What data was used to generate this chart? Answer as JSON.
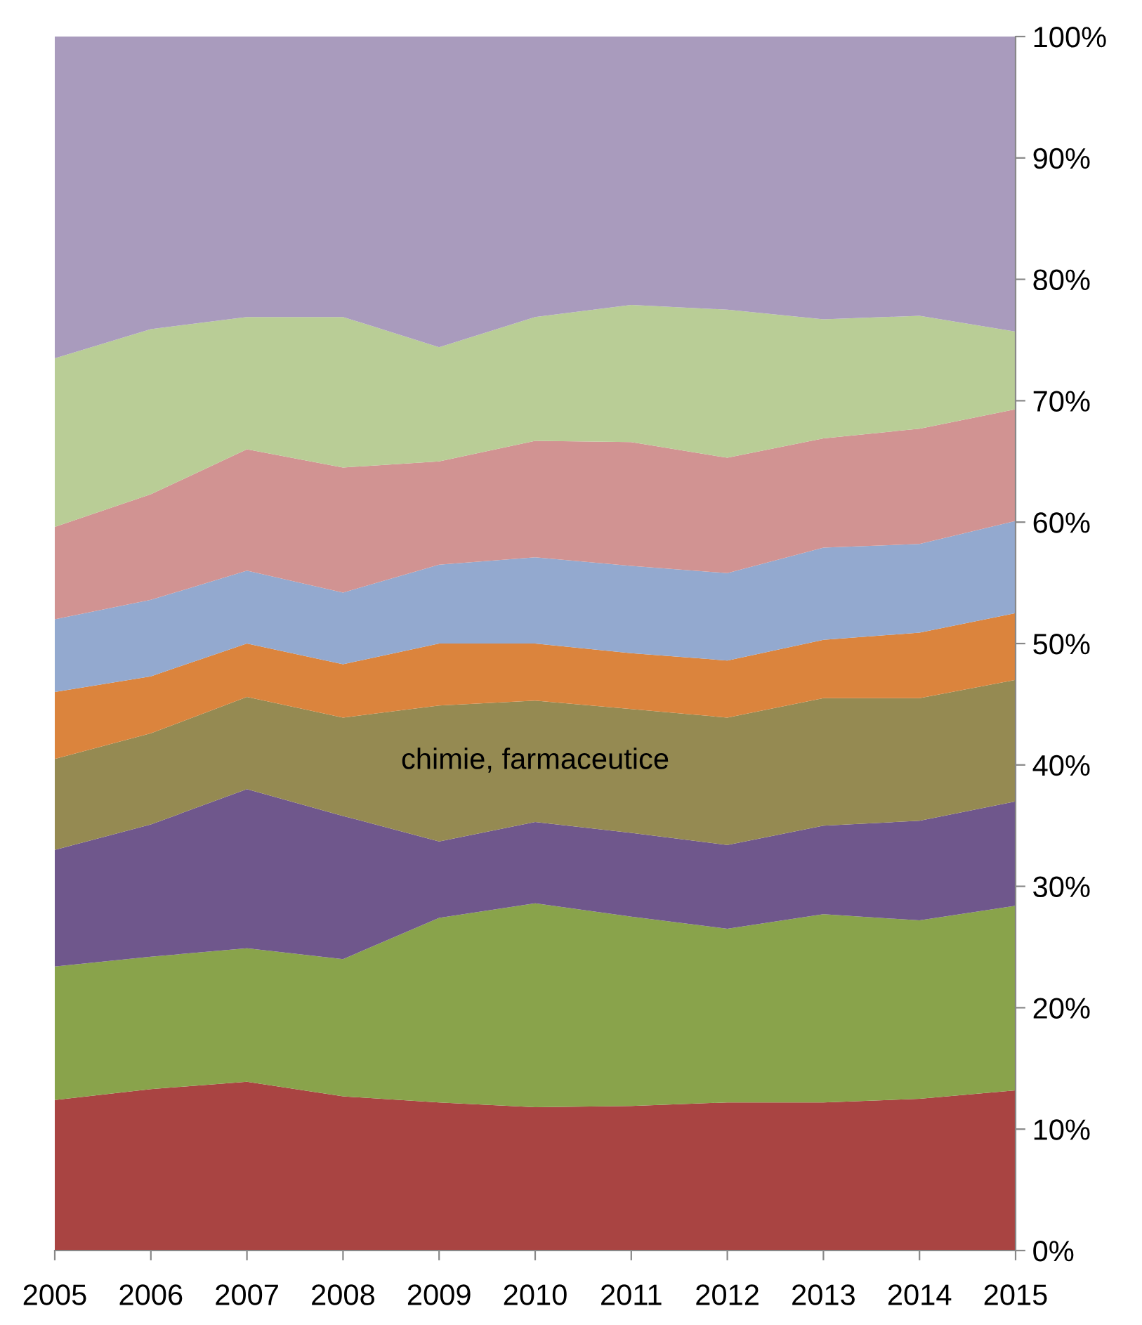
{
  "chart_data": {
    "type": "area",
    "stacked": true,
    "x": [
      2005,
      2006,
      2007,
      2008,
      2009,
      2010,
      2011,
      2012,
      2013,
      2014,
      2015
    ],
    "series": [
      {
        "color": "#a94442",
        "values": [
          12.4,
          13.3,
          13.9,
          12.7,
          12.2,
          11.8,
          11.9,
          12.2,
          12.2,
          12.5,
          13.2
        ]
      },
      {
        "color": "#89a34b",
        "values": [
          11.0,
          10.9,
          11.0,
          11.3,
          15.2,
          16.8,
          15.6,
          14.3,
          15.5,
          14.7,
          15.2
        ]
      },
      {
        "color": "#6f578c",
        "values": [
          9.6,
          10.9,
          13.1,
          11.8,
          6.3,
          6.7,
          6.9,
          6.9,
          7.3,
          8.2,
          8.6
        ]
      },
      {
        "name": "chimie, farmaceutice",
        "color": "#958a52",
        "values": [
          7.5,
          7.5,
          7.6,
          8.1,
          11.2,
          10.0,
          10.2,
          10.5,
          10.5,
          10.1,
          10.0
        ]
      },
      {
        "color": "#db843d",
        "values": [
          5.5,
          4.7,
          4.4,
          4.4,
          5.1,
          4.7,
          4.6,
          4.7,
          4.8,
          5.4,
          5.5
        ]
      },
      {
        "color": "#93a9cf",
        "values": [
          6.0,
          6.3,
          6.0,
          5.9,
          6.5,
          7.1,
          7.2,
          7.2,
          7.6,
          7.3,
          7.6
        ]
      },
      {
        "color": "#d19392",
        "values": [
          7.6,
          8.7,
          10.0,
          10.3,
          8.5,
          9.6,
          10.2,
          9.5,
          9.0,
          9.5,
          9.2
        ]
      },
      {
        "color": "#b9cd96",
        "values": [
          13.9,
          13.6,
          10.9,
          12.4,
          9.4,
          10.2,
          11.3,
          12.2,
          9.8,
          9.3,
          6.4
        ]
      },
      {
        "color": "#a99bbd",
        "values": [
          26.5,
          24.1,
          23.1,
          23.1,
          25.6,
          23.1,
          22.1,
          22.5,
          23.3,
          23.0,
          24.3
        ]
      }
    ],
    "xlim": [
      2005,
      2015
    ],
    "xticks": [
      2005,
      2006,
      2007,
      2008,
      2009,
      2010,
      2011,
      2012,
      2013,
      2014,
      2015
    ],
    "ylim": [
      0,
      100
    ],
    "yticks": [
      {
        "value": 0,
        "label": "0%"
      },
      {
        "value": 10,
        "label": "10%"
      },
      {
        "value": 20,
        "label": "20%"
      },
      {
        "value": 30,
        "label": "30%"
      },
      {
        "value": 40,
        "label": "40%"
      },
      {
        "value": 50,
        "label": "50%"
      },
      {
        "value": 60,
        "label": "60%"
      },
      {
        "value": 70,
        "label": "70%"
      },
      {
        "value": 80,
        "label": "80%"
      },
      {
        "value": 90,
        "label": "90%"
      },
      {
        "value": 100,
        "label": "100%"
      }
    ],
    "grid": false,
    "legend": false
  }
}
